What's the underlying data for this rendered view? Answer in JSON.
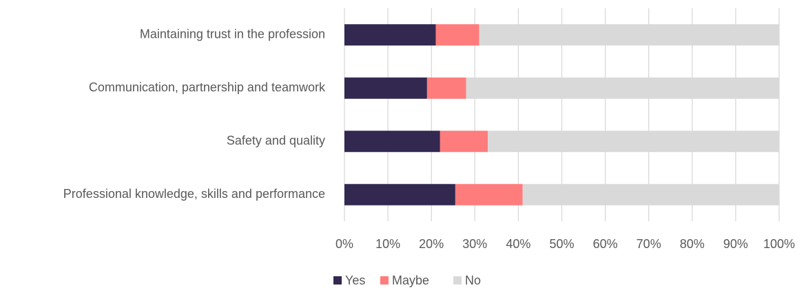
{
  "chart_data": {
    "type": "stacked_bar_horizontal",
    "categories": [
      "Maintaining trust in the profession",
      "Communication, partnership and teamwork",
      "Safety and quality",
      "Professional knowledge, skills and performance"
    ],
    "series": [
      {
        "name": "Yes",
        "color": "#332850",
        "values": [
          21,
          19,
          22,
          25.5
        ]
      },
      {
        "name": "Maybe",
        "color": "#ff7c7c",
        "values": [
          10,
          9,
          11,
          15.5
        ]
      },
      {
        "name": "No",
        "color": "#d9d9d9",
        "values": [
          69,
          72,
          67,
          59
        ]
      }
    ],
    "xlim": [
      0,
      100
    ],
    "xticks": [
      {
        "value": 0,
        "label": "0%"
      },
      {
        "value": 10,
        "label": "10%"
      },
      {
        "value": 20,
        "label": "20%"
      },
      {
        "value": 30,
        "label": "30%"
      },
      {
        "value": 40,
        "label": "40%"
      },
      {
        "value": 50,
        "label": "50%"
      },
      {
        "value": 60,
        "label": "60%"
      },
      {
        "value": 70,
        "label": "70%"
      },
      {
        "value": 80,
        "label": "80%"
      },
      {
        "value": 90,
        "label": "90%"
      },
      {
        "value": 100,
        "label": "100%"
      }
    ],
    "grid": true,
    "legend": "bottom"
  }
}
